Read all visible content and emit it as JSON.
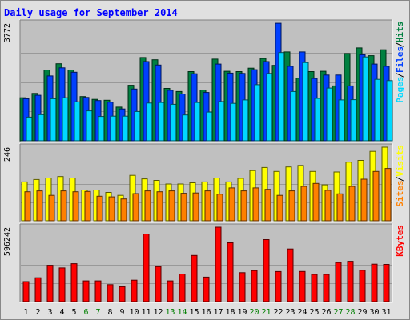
{
  "chart_data": {
    "type": "bar",
    "title": "Daily usage for September 2014",
    "categories": [
      "1",
      "2",
      "3",
      "4",
      "5",
      "6",
      "7",
      "8",
      "9",
      "10",
      "11",
      "12",
      "13",
      "14",
      "15",
      "16",
      "17",
      "18",
      "19",
      "20",
      "21",
      "22",
      "23",
      "24",
      "25",
      "26",
      "27",
      "28",
      "29",
      "30",
      "31"
    ],
    "weekend_days": [
      "6",
      "7",
      "13",
      "14",
      "20",
      "21",
      "27",
      "28"
    ],
    "colors": {
      "title": "#0000ff",
      "weekday_label": "#000000",
      "weekend_label": "#008000",
      "pages": "#00d8ff",
      "files": "#0040ff",
      "hits": "#008040",
      "sites": "#ff8000",
      "visits": "#ffff00",
      "kbytes": "#ff0000",
      "panel_bg": "#c0c0c0",
      "frame_bg": "#e0e0e0"
    },
    "panels": [
      {
        "name": "hits-files-pages",
        "max_label": "3772",
        "right_labels": [
          {
            "text": "Pages",
            "color": "#00d8ff"
          },
          {
            "text": "Files",
            "color": "#0040ff"
          },
          {
            "text": "Hits",
            "color": "#008040"
          }
        ],
        "ymax": 3772,
        "series": [
          {
            "key": "hits",
            "values": [
              1380,
              1520,
              2270,
              2470,
              2270,
              1420,
              1330,
              1300,
              1080,
              1780,
              2670,
              2600,
              1680,
              1580,
              2220,
              1630,
              2620,
              2230,
              2220,
              2330,
              2640,
              2420,
              2850,
              2010,
              2220,
              2230,
              1760,
              2800,
              2980,
              2730,
              2920
            ]
          },
          {
            "key": "files",
            "values": [
              1350,
              1460,
              2080,
              2340,
              2200,
              1390,
              1290,
              1240,
              1020,
              1660,
              2540,
              2430,
              1620,
              1500,
              2150,
              1550,
              2460,
              2170,
              2160,
              2280,
              2540,
              3770,
              2390,
              2850,
              2000,
              2110,
              2110,
              1760,
              2760,
              2460,
              2390
            ]
          },
          {
            "key": "pages",
            "values": [
              760,
              840,
              1350,
              1380,
              1250,
              960,
              780,
              790,
              790,
              940,
              1210,
              1230,
              1170,
              830,
              1230,
              920,
              1260,
              1200,
              1310,
              1800,
              2160,
              2830,
              1580,
              2510,
              1360,
              1690,
              1310,
              1320,
              2690,
              1970,
              1930
            ]
          }
        ]
      },
      {
        "name": "visits-sites",
        "max_label": "246",
        "right_labels": [
          {
            "text": "Sites",
            "color": "#ff8000"
          },
          {
            "text": "Visits",
            "color": "#ffff00"
          }
        ],
        "ymax": 246,
        "series": [
          {
            "key": "visits",
            "values": [
              130,
              138,
              143,
              148,
              143,
              103,
              103,
              95,
              85,
              152,
              140,
              135,
              123,
              123,
              127,
              130,
              143,
              130,
              142,
              168,
              178,
              165,
              180,
              185,
              165,
              120,
              163,
              196,
              202,
              232,
              246
            ]
          },
          {
            "key": "sites",
            "values": [
              97,
              100,
              85,
              100,
              97,
              98,
              82,
              80,
              73,
              91,
              100,
              97,
              100,
              92,
              93,
              100,
              89,
              110,
              100,
              110,
              105,
              85,
              100,
              115,
              125,
              102,
              90,
              115,
              139,
              165,
              175
            ]
          }
        ]
      },
      {
        "name": "kbytes",
        "max_label": "596242",
        "right_labels": [
          {
            "text": "KBytes",
            "color": "#ff0000"
          }
        ],
        "ymax": 596242,
        "series": [
          {
            "key": "kbytes",
            "values": [
              160000,
              191000,
              291000,
              270000,
              304000,
              166000,
              166000,
              136000,
              119000,
              172000,
              542000,
              280000,
              166000,
              221000,
              370000,
              196000,
              596000,
              471000,
              232000,
              249000,
              497000,
              241000,
              422000,
              242000,
              218000,
              218000,
              313000,
              323000,
              251000,
              300000,
              298000
            ]
          }
        ]
      }
    ]
  }
}
